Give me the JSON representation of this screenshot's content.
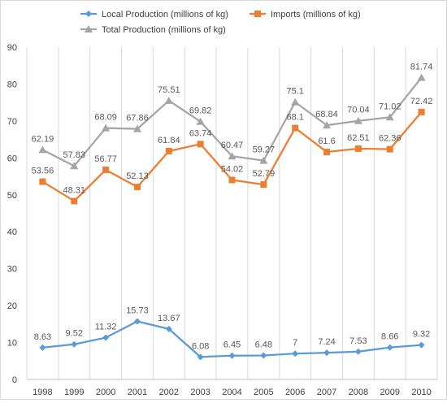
{
  "chart_data": {
    "type": "line",
    "title": "",
    "xlabel": "",
    "ylabel": "",
    "ylim": [
      0,
      90
    ],
    "yticks": [
      "0",
      "10",
      "20",
      "30",
      "40",
      "50",
      "60",
      "70",
      "80",
      "90"
    ],
    "categories": [
      "1998",
      "1999",
      "2000",
      "2001",
      "2002",
      "2003",
      "2004",
      "2005",
      "2006",
      "2007",
      "2008",
      "2009",
      "2010"
    ],
    "grid": "vertical",
    "legend_position": "top",
    "series": [
      {
        "name": "Local Production (millions of kg)",
        "color": "#5b9bd5",
        "marker": "diamond",
        "values": [
          8.63,
          9.52,
          11.32,
          15.73,
          13.67,
          6.08,
          6.45,
          6.48,
          7,
          7.24,
          7.53,
          8.66,
          9.32
        ]
      },
      {
        "name": "Imports (millions of kg)",
        "color": "#ed7d31",
        "marker": "square",
        "values": [
          53.56,
          48.31,
          56.77,
          52.13,
          61.84,
          63.74,
          54.02,
          52.79,
          68.1,
          61.6,
          62.51,
          62.36,
          72.42
        ]
      },
      {
        "name": "Total Production (millions of kg)",
        "color": "#a5a5a5",
        "marker": "triangle",
        "values": [
          62.19,
          57.83,
          68.09,
          67.86,
          75.51,
          69.82,
          60.47,
          59.27,
          75.1,
          68.84,
          70.04,
          71.02,
          81.74
        ]
      }
    ]
  }
}
